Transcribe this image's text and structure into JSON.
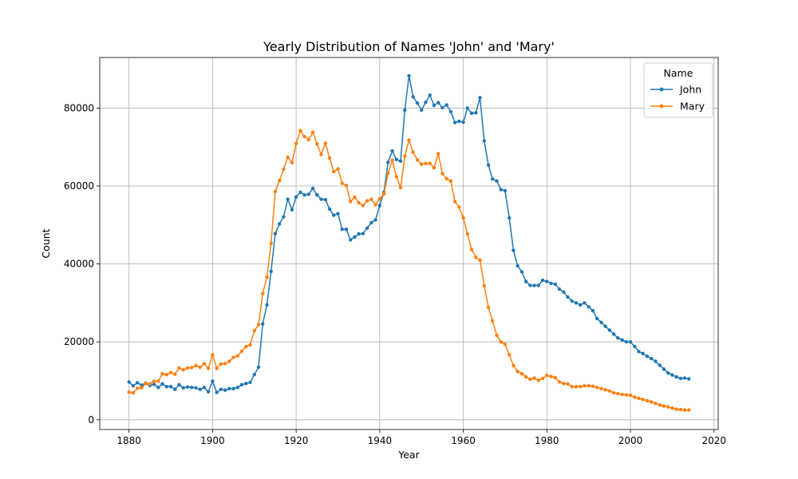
{
  "chart_data": {
    "type": "line",
    "title": "Yearly Distribution of Names 'John' and 'Mary'",
    "xlabel": "Year",
    "ylabel": "Count",
    "xlim": [
      1873,
      2021
    ],
    "ylim": [
      -2500,
      93000
    ],
    "xticks": [
      1880,
      1900,
      1920,
      1940,
      1960,
      1980,
      2000,
      2020
    ],
    "yticks": [
      0,
      20000,
      40000,
      60000,
      80000
    ],
    "grid": true,
    "legend": {
      "title": "Name",
      "placement": "top-right"
    },
    "series": [
      {
        "name": "John",
        "color": "#1f77b4",
        "x": [
          1880,
          1881,
          1882,
          1883,
          1884,
          1885,
          1886,
          1887,
          1888,
          1889,
          1890,
          1891,
          1892,
          1893,
          1894,
          1895,
          1896,
          1897,
          1898,
          1899,
          1900,
          1901,
          1902,
          1903,
          1904,
          1905,
          1906,
          1907,
          1908,
          1909,
          1910,
          1911,
          1912,
          1913,
          1914,
          1915,
          1916,
          1917,
          1918,
          1919,
          1920,
          1921,
          1922,
          1923,
          1924,
          1925,
          1926,
          1927,
          1928,
          1929,
          1930,
          1931,
          1932,
          1933,
          1934,
          1935,
          1936,
          1937,
          1938,
          1939,
          1940,
          1941,
          1942,
          1943,
          1944,
          1945,
          1946,
          1947,
          1948,
          1949,
          1950,
          1951,
          1952,
          1953,
          1954,
          1955,
          1956,
          1957,
          1958,
          1959,
          1960,
          1961,
          1962,
          1963,
          1964,
          1965,
          1966,
          1967,
          1968,
          1969,
          1970,
          1971,
          1972,
          1973,
          1974,
          1975,
          1976,
          1977,
          1978,
          1979,
          1980,
          1981,
          1982,
          1983,
          1984,
          1985,
          1986,
          1987,
          1988,
          1989,
          1990,
          1991,
          1992,
          1993,
          1994,
          1995,
          1996,
          1997,
          1998,
          1999,
          2000,
          2001,
          2002,
          2003,
          2004,
          2005,
          2006,
          2007,
          2008,
          2009,
          2010,
          2011,
          2012,
          2013,
          2014
        ],
        "values": [
          9700,
          8700,
          9500,
          8900,
          9400,
          8800,
          9100,
          8300,
          9200,
          8500,
          8500,
          7800,
          9000,
          8200,
          8400,
          8300,
          8200,
          7800,
          8300,
          7200,
          9900,
          7000,
          7800,
          7600,
          8000,
          8000,
          8300,
          9000,
          9300,
          9600,
          11600,
          13500,
          24600,
          29500,
          38100,
          47800,
          50300,
          52100,
          56600,
          53900,
          57200,
          58400,
          57700,
          57900,
          59400,
          57700,
          56600,
          56500,
          54100,
          52500,
          52900,
          48900,
          48900,
          46200,
          46900,
          47700,
          47800,
          49200,
          50600,
          51300,
          55000,
          58400,
          66100,
          69000,
          66800,
          66400,
          79500,
          88300,
          82900,
          81300,
          79500,
          81500,
          83300,
          80700,
          81400,
          80100,
          80800,
          79100,
          76300,
          76600,
          76400,
          80000,
          78700,
          78800,
          82700,
          71600,
          65400,
          61800,
          61300,
          59100,
          58800,
          51800,
          43500,
          39500,
          38000,
          35500,
          34500,
          34500,
          34500,
          35800,
          35500,
          35000,
          34800,
          33500,
          32800,
          31500,
          30500,
          30000,
          29500,
          30000,
          29000,
          28000,
          26000,
          25000,
          24000,
          23000,
          22000,
          21000,
          20500,
          20000,
          20000,
          18800,
          17500,
          17000,
          16300,
          15700,
          15000,
          14000,
          13000,
          12000,
          11500,
          11000,
          10600,
          10700,
          10500
        ]
      },
      {
        "name": "Mary",
        "color": "#ff7f0e",
        "x": [
          1880,
          1881,
          1882,
          1883,
          1884,
          1885,
          1886,
          1887,
          1888,
          1889,
          1890,
          1891,
          1892,
          1893,
          1894,
          1895,
          1896,
          1897,
          1898,
          1899,
          1900,
          1901,
          1902,
          1903,
          1904,
          1905,
          1906,
          1907,
          1908,
          1909,
          1910,
          1911,
          1912,
          1913,
          1914,
          1915,
          1916,
          1917,
          1918,
          1919,
          1920,
          1921,
          1922,
          1923,
          1924,
          1925,
          1926,
          1927,
          1928,
          1929,
          1930,
          1931,
          1932,
          1933,
          1934,
          1935,
          1936,
          1937,
          1938,
          1939,
          1940,
          1941,
          1942,
          1943,
          1944,
          1945,
          1946,
          1947,
          1948,
          1949,
          1950,
          1951,
          1952,
          1953,
          1954,
          1955,
          1956,
          1957,
          1958,
          1959,
          1960,
          1961,
          1962,
          1963,
          1964,
          1965,
          1966,
          1967,
          1968,
          1969,
          1970,
          1971,
          1972,
          1973,
          1974,
          1975,
          1976,
          1977,
          1978,
          1979,
          1980,
          1981,
          1982,
          1983,
          1984,
          1985,
          1986,
          1987,
          1988,
          1989,
          1990,
          1991,
          1992,
          1993,
          1994,
          1995,
          1996,
          1997,
          1998,
          1999,
          2000,
          2001,
          2002,
          2003,
          2004,
          2005,
          2006,
          2007,
          2008,
          2009,
          2010,
          2011,
          2012,
          2013,
          2014
        ],
        "values": [
          7100,
          6900,
          8100,
          8200,
          9300,
          9200,
          9900,
          9900,
          11800,
          11600,
          12100,
          11700,
          13300,
          12800,
          13300,
          13400,
          13900,
          13500,
          14400,
          13200,
          16700,
          13200,
          14300,
          14400,
          15000,
          16000,
          16400,
          17600,
          18800,
          19200,
          22900,
          24400,
          32400,
          36600,
          45300,
          58600,
          61400,
          64300,
          67400,
          66000,
          70900,
          74200,
          72700,
          71900,
          73800,
          70800,
          68100,
          71000,
          67200,
          63700,
          64400,
          60700,
          60100,
          56000,
          57100,
          55700,
          55000,
          56200,
          56600,
          55200,
          56700,
          58000,
          63300,
          66600,
          62400,
          59600,
          67700,
          71800,
          68700,
          66700,
          65600,
          65800,
          65800,
          64700,
          68300,
          63200,
          61900,
          61300,
          56000,
          54600,
          51800,
          47700,
          43700,
          41700,
          41000,
          34400,
          28900,
          25400,
          21700,
          20000,
          19400,
          16700,
          13900,
          12400,
          11800,
          11000,
          10400,
          10700,
          10100,
          10600,
          11400,
          11100,
          10800,
          9700,
          9300,
          9200,
          8500,
          8500,
          8500,
          8700,
          8700,
          8600,
          8300,
          8000,
          7700,
          7400,
          6900,
          6700,
          6500,
          6400,
          6300,
          5800,
          5500,
          5200,
          4900,
          4600,
          4200,
          3800,
          3500,
          3300,
          3000,
          2700,
          2600,
          2500,
          2500
        ]
      }
    ]
  }
}
